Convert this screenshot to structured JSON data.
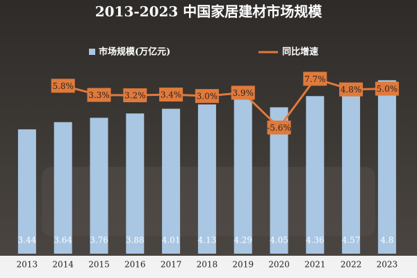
{
  "chart_data": {
    "type": "bar",
    "title": "2013-2023 中国家居建材市场规模",
    "categories": [
      "2013",
      "2014",
      "2015",
      "2016",
      "2017",
      "2018",
      "2019",
      "2020",
      "2021",
      "2022",
      "2023"
    ],
    "series": [
      {
        "name": "市场规模(万亿元)",
        "color": "#a9c6e3",
        "type": "bar",
        "values": [
          3.44,
          3.64,
          3.76,
          3.88,
          4.01,
          4.13,
          4.29,
          4.05,
          4.36,
          4.57,
          4.8
        ]
      },
      {
        "name": "同比增速",
        "color": "#e07a3c",
        "type": "line",
        "axis": "y2",
        "values": [
          null,
          5.8,
          3.3,
          3.2,
          3.4,
          3.0,
          3.9,
          -5.6,
          7.7,
          4.8,
          5.0
        ],
        "value_labels": [
          null,
          "5.8%",
          "3.3%",
          "3.2%",
          "3.4%",
          "3.0%",
          "3.9%",
          "-5.6%",
          "7.7%",
          "4.8%",
          "5.0%"
        ]
      }
    ],
    "ylim": [
      0,
      7
    ],
    "y2lim": [
      -40,
      29
    ]
  }
}
